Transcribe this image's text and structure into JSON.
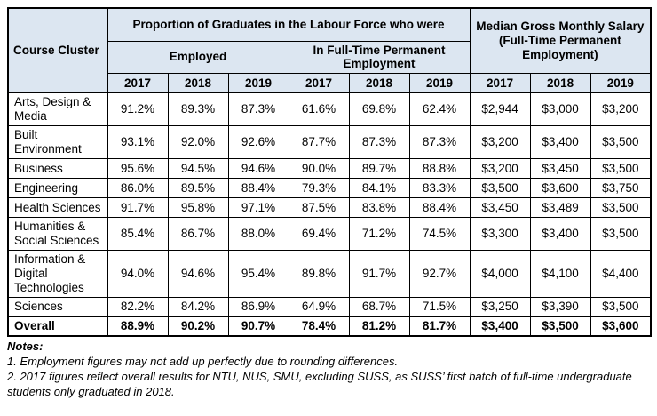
{
  "colors": {
    "header_bg": "#DCE6F1",
    "border": "#000000",
    "text": "#000000",
    "body_bg": "#FFFFFF"
  },
  "table": {
    "header": {
      "course_cluster": "Course Cluster",
      "group_labour": "Proportion of Graduates in the Labour Force who were",
      "group_employed": "Employed",
      "group_ftpe": "In Full-Time Permanent Employment",
      "group_salary": "Median Gross Monthly Salary (Full-Time Permanent Employment)",
      "years": [
        "2017",
        "2018",
        "2019"
      ]
    },
    "rows": [
      {
        "cluster": "Arts, Design & Media",
        "employed": [
          "91.2%",
          "89.3%",
          "87.3%"
        ],
        "ftpe": [
          "61.6%",
          "69.8%",
          "62.4%"
        ],
        "salary": [
          "$2,944",
          "$3,000",
          "$3,200"
        ],
        "emphasis": false
      },
      {
        "cluster": "Built Environment",
        "employed": [
          "93.1%",
          "92.0%",
          "92.6%"
        ],
        "ftpe": [
          "87.7%",
          "87.3%",
          "87.3%"
        ],
        "salary": [
          "$3,200",
          "$3,400",
          "$3,500"
        ],
        "emphasis": false
      },
      {
        "cluster": "Business",
        "employed": [
          "95.6%",
          "94.5%",
          "94.6%"
        ],
        "ftpe": [
          "90.0%",
          "89.7%",
          "88.8%"
        ],
        "salary": [
          "$3,200",
          "$3,450",
          "$3,500"
        ],
        "emphasis": false
      },
      {
        "cluster": "Engineering",
        "employed": [
          "86.0%",
          "89.5%",
          "88.4%"
        ],
        "ftpe": [
          "79.3%",
          "84.1%",
          "83.3%"
        ],
        "salary": [
          "$3,500",
          "$3,600",
          "$3,750"
        ],
        "emphasis": false
      },
      {
        "cluster": "Health Sciences",
        "employed": [
          "91.7%",
          "95.8%",
          "97.1%"
        ],
        "ftpe": [
          "87.5%",
          "83.8%",
          "88.4%"
        ],
        "salary": [
          "$3,450",
          "$3,489",
          "$3,500"
        ],
        "emphasis": false
      },
      {
        "cluster": "Humanities & Social Sciences",
        "employed": [
          "85.4%",
          "86.7%",
          "88.0%"
        ],
        "ftpe": [
          "69.4%",
          "71.2%",
          "74.5%"
        ],
        "salary": [
          "$3,300",
          "$3,400",
          "$3,500"
        ],
        "emphasis": false
      },
      {
        "cluster": "Information & Digital Technologies",
        "employed": [
          "94.0%",
          "94.6%",
          "95.4%"
        ],
        "ftpe": [
          "89.8%",
          "91.7%",
          "92.7%"
        ],
        "salary": [
          "$4,000",
          "$4,100",
          "$4,400"
        ],
        "emphasis": false
      },
      {
        "cluster": "Sciences",
        "employed": [
          "82.2%",
          "84.2%",
          "86.9%"
        ],
        "ftpe": [
          "64.9%",
          "68.7%",
          "71.5%"
        ],
        "salary": [
          "$3,250",
          "$3,390",
          "$3,500"
        ],
        "emphasis": false
      },
      {
        "cluster": "Overall",
        "employed": [
          "88.9%",
          "90.2%",
          "90.7%"
        ],
        "ftpe": [
          "78.4%",
          "81.2%",
          "81.7%"
        ],
        "salary": [
          "$3,400",
          "$3,500",
          "$3,600"
        ],
        "emphasis": true
      }
    ]
  },
  "notes": {
    "title": "Notes:",
    "items": [
      "1. Employment figures may not add up perfectly due to rounding differences.",
      "2.  2017 figures reflect overall results for NTU, NUS, SMU, excluding SUSS, as SUSS’ first batch of full-time undergraduate students only graduated in 2018."
    ]
  }
}
